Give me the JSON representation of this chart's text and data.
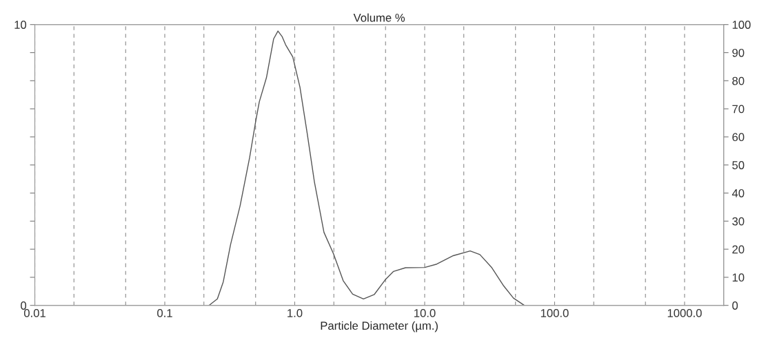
{
  "chart_data": {
    "type": "line",
    "title": "Volume %",
    "xlabel": "Particle Diameter (µm.)",
    "log": "x",
    "xlim": [
      0.01,
      2000
    ],
    "xticks": [
      {
        "value": 0.01,
        "label": "0.01"
      },
      {
        "value": 0.02,
        "label": null
      },
      {
        "value": 0.05,
        "label": null
      },
      {
        "value": 0.1,
        "label": "0.1"
      },
      {
        "value": 0.2,
        "label": null
      },
      {
        "value": 0.5,
        "label": null
      },
      {
        "value": 1,
        "label": "1.0"
      },
      {
        "value": 2,
        "label": null
      },
      {
        "value": 5,
        "label": null
      },
      {
        "value": 10,
        "label": "10.0"
      },
      {
        "value": 20,
        "label": null
      },
      {
        "value": 50,
        "label": null
      },
      {
        "value": 100,
        "label": "100.0"
      },
      {
        "value": 200,
        "label": null
      },
      {
        "value": 500,
        "label": null
      },
      {
        "value": 1000,
        "label": "1000.0"
      }
    ],
    "ylim": [
      0,
      10
    ],
    "yticks": [
      0,
      {
        "value": 1,
        "label": null
      },
      {
        "value": 2,
        "label": null
      },
      {
        "value": 3,
        "label": null
      },
      {
        "value": 4,
        "label": null
      },
      {
        "value": 5,
        "label": null
      },
      {
        "value": 6,
        "label": null
      },
      {
        "value": 7,
        "label": null
      },
      {
        "value": 8,
        "label": null
      },
      {
        "value": 9,
        "label": null
      },
      10
    ],
    "y2lim": [
      0,
      100
    ],
    "y2ticks": [
      0,
      10,
      20,
      30,
      40,
      50,
      60,
      70,
      80,
      90,
      100
    ],
    "grid": "x",
    "legend": false,
    "marker": "none",
    "line_style": "solid",
    "series": [
      {
        "color": "#555555",
        "x": [
          0.219,
          0.254,
          0.282,
          0.321,
          0.38,
          0.45,
          0.501,
          0.534,
          0.606,
          0.688,
          0.743,
          0.798,
          0.851,
          0.966,
          1.097,
          1.247,
          1.416,
          1.679,
          1.99,
          2.36,
          2.79,
          3.38,
          4.1,
          4.97,
          5.76,
          7.12,
          10.0,
          12.4,
          16.6,
          22.4,
          26.6,
          32.9,
          40.6,
          48.2,
          58.4
        ],
        "values": [
          0,
          0.23,
          0.84,
          2.17,
          3.55,
          5.27,
          6.56,
          7.25,
          8.11,
          9.49,
          9.77,
          9.58,
          9.28,
          8.85,
          7.77,
          6.13,
          4.41,
          2.6,
          1.83,
          0.88,
          0.4,
          0.23,
          0.39,
          0.91,
          1.21,
          1.34,
          1.35,
          1.47,
          1.77,
          1.94,
          1.81,
          1.34,
          0.69,
          0.26,
          0
        ]
      }
    ]
  }
}
